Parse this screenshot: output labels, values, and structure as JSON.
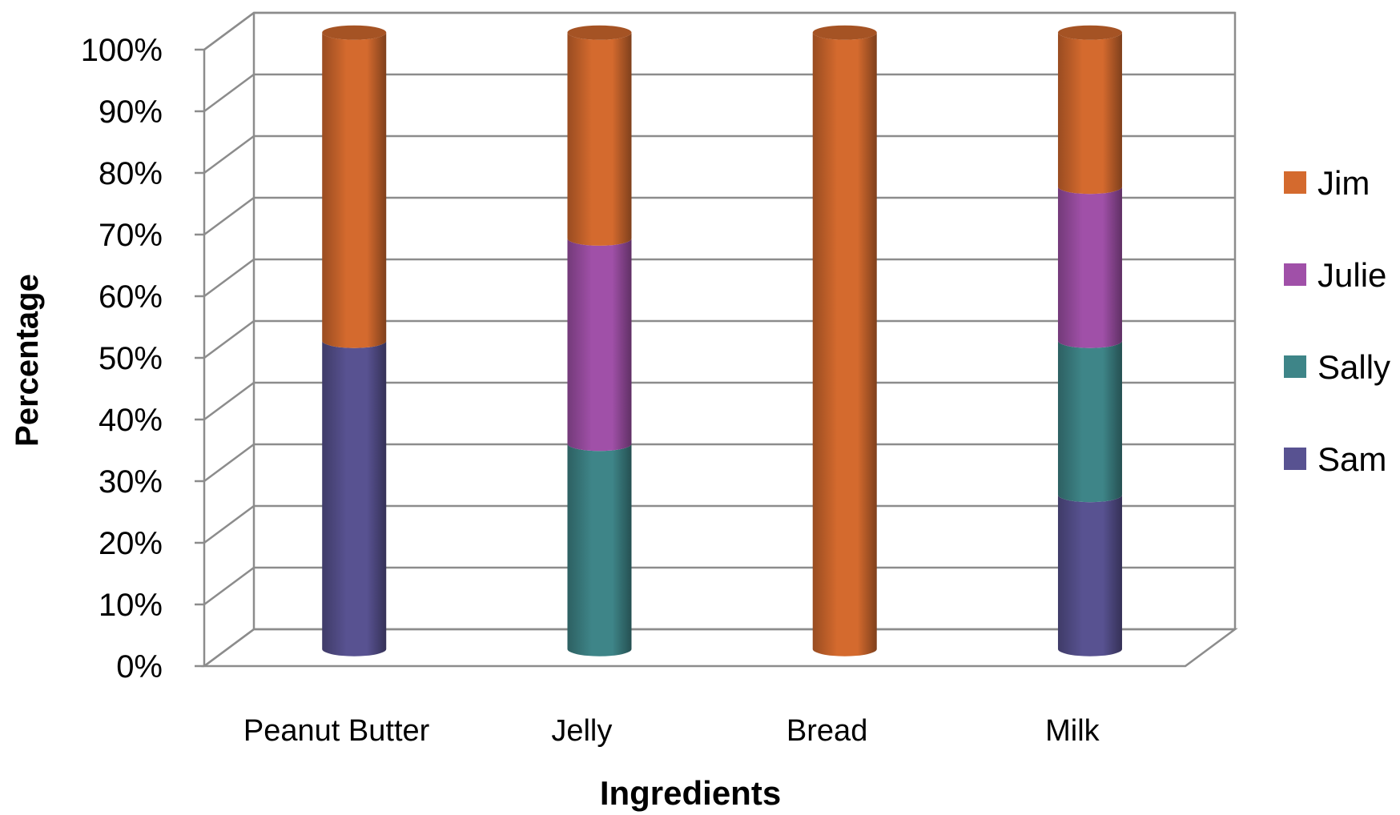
{
  "chart_data": {
    "type": "bar",
    "stacked": true,
    "percent_stacked": true,
    "three_d": true,
    "bar_shape": "cylinder",
    "title": "",
    "xlabel": "Ingredients",
    "ylabel": "Percentage",
    "categories": [
      "Peanut Butter",
      "Jelly",
      "Bread",
      "Milk"
    ],
    "y_ticks": [
      "0%",
      "10%",
      "20%",
      "30%",
      "40%",
      "50%",
      "60%",
      "70%",
      "80%",
      "90%",
      "100%"
    ],
    "ylim": [
      0,
      100
    ],
    "grid": true,
    "legend_position": "right",
    "series": [
      {
        "name": "Sam",
        "values": [
          50,
          0,
          0,
          25
        ],
        "color": "#585291"
      },
      {
        "name": "Sally",
        "values": [
          0,
          33.3,
          0,
          25
        ],
        "color": "#3e8588"
      },
      {
        "name": "Julie",
        "values": [
          0,
          33.3,
          0,
          25
        ],
        "color": "#a050a8"
      },
      {
        "name": "Jim",
        "values": [
          50,
          33.4,
          100,
          25
        ],
        "color": "#d46a2e"
      }
    ],
    "legend_order": [
      "Jim",
      "Julie",
      "Sally",
      "Sam"
    ]
  }
}
